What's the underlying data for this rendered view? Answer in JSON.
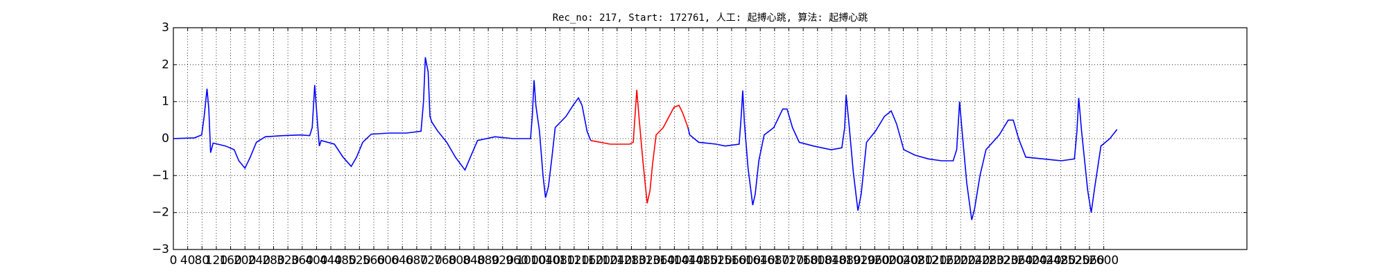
{
  "chart_data": {
    "type": "line",
    "title": "Rec_no: 217, Start: 172761, 人工: 起搏心跳, 算法: 起搏心跳",
    "xlim": [
      0,
      3000
    ],
    "ylim": [
      -3,
      3
    ],
    "grid": true,
    "xticks": [
      0,
      40,
      80,
      120,
      160,
      200,
      240,
      280,
      320,
      360,
      400,
      440,
      480,
      520,
      560,
      600,
      640,
      680,
      720,
      760,
      800,
      840,
      880,
      920,
      960,
      1000,
      1040,
      1080,
      1120,
      1160,
      1200,
      1240,
      1280,
      1320,
      1360,
      1400,
      1440,
      1480,
      1520,
      1560,
      1600,
      1640,
      1680,
      1720,
      1760,
      1800,
      1840,
      1880,
      1920,
      1960,
      2000,
      2040,
      2080,
      2120,
      2160,
      2200,
      2240,
      2280,
      2320,
      2360,
      2400,
      2440,
      2480,
      2520,
      2560,
      2600
    ],
    "yticks": [
      {
        "value": -3,
        "label": "−3"
      },
      {
        "value": -2,
        "label": "−2"
      },
      {
        "value": -1,
        "label": "−1"
      },
      0,
      1,
      2,
      3
    ],
    "series": [
      {
        "color": "#0000ff",
        "x": [
          0,
          59,
          79,
          86,
          94,
          99,
          104,
          111,
          146,
          170,
          183,
          200,
          215,
          232,
          257,
          306,
          356,
          381,
          388,
          395,
          403,
          408,
          413,
          450,
          474,
          497,
          512,
          529,
          553,
          603,
          652,
          692,
          699,
          704,
          712,
          717,
          722,
          739,
          764,
          788,
          815,
          830,
          850,
          899,
          949,
          998,
          1003,
          1008,
          1013,
          1023,
          1033,
          1040,
          1048,
          1058,
          1067,
          1097,
          1117,
          1132,
          1142,
          1156,
          1166
        ],
        "values": [
          0,
          0.02,
          0.1,
          0.6,
          1.35,
          0.8,
          -0.38,
          -0.12,
          -0.2,
          -0.3,
          -0.6,
          -0.8,
          -0.5,
          -0.1,
          0.05,
          0.08,
          0.1,
          0.08,
          0.3,
          1.45,
          0.4,
          -0.2,
          -0.05,
          -0.15,
          -0.5,
          -0.75,
          -0.5,
          -0.1,
          0.12,
          0.15,
          0.15,
          0.2,
          1.0,
          2.2,
          1.8,
          0.6,
          0.45,
          0.2,
          -0.1,
          -0.5,
          -0.85,
          -0.5,
          -0.05,
          0.05,
          0,
          0,
          0.6,
          1.58,
          0.9,
          0.2,
          -1.0,
          -1.6,
          -1.3,
          -0.5,
          0.3,
          0.6,
          0.9,
          1.1,
          0.9,
          0.2,
          -0.05
        ]
      },
      {
        "color": "#ff0000",
        "x": [
          1166,
          1221,
          1275,
          1285,
          1295,
          1302,
          1312,
          1324,
          1332,
          1339,
          1349,
          1369,
          1399,
          1413,
          1423,
          1438
        ],
        "values": [
          -0.05,
          -0.15,
          -0.15,
          -0.1,
          1.32,
          0.5,
          -0.6,
          -1.75,
          -1.4,
          -0.7,
          0.1,
          0.3,
          0.85,
          0.9,
          0.7,
          0.3
        ]
      },
      {
        "color": "#0000ff",
        "x": [
          1438,
          1443,
          1468,
          1517,
          1542,
          1581,
          1586,
          1591,
          1596,
          1606,
          1619,
          1626,
          1636,
          1651,
          1678,
          1703,
          1715,
          1730,
          1749,
          1789,
          1838,
          1868,
          1876,
          1880,
          1888,
          1900,
          1913,
          1922,
          1937,
          1962,
          1987,
          2006,
          2021,
          2041,
          2073,
          2110,
          2147,
          2179,
          2189,
          2197,
          2204,
          2217,
          2231,
          2239,
          2254,
          2271,
          2308,
          2333,
          2347,
          2362,
          2382,
          2431,
          2481,
          2518,
          2525,
          2530,
          2538,
          2555,
          2565,
          2575,
          2592,
          2617,
          2637
        ],
        "values": [
          0.3,
          0.1,
          -0.1,
          -0.15,
          -0.2,
          -0.15,
          0.5,
          1.3,
          0.4,
          -0.8,
          -1.8,
          -1.5,
          -0.6,
          0.1,
          0.3,
          0.8,
          0.8,
          0.3,
          -0.1,
          -0.2,
          -0.3,
          -0.25,
          0.3,
          1.18,
          0.4,
          -0.9,
          -1.95,
          -1.5,
          -0.1,
          0.2,
          0.6,
          0.75,
          0.4,
          -0.3,
          -0.45,
          -0.55,
          -0.6,
          -0.6,
          -0.3,
          1.0,
          0.2,
          -1.2,
          -2.2,
          -1.9,
          -1.0,
          -0.3,
          0.1,
          0.5,
          0.5,
          0,
          -0.5,
          -0.55,
          -0.6,
          -0.55,
          0.2,
          1.1,
          0.2,
          -1.4,
          -2.0,
          -1.3,
          -0.2,
          0,
          0.25
        ]
      }
    ]
  }
}
